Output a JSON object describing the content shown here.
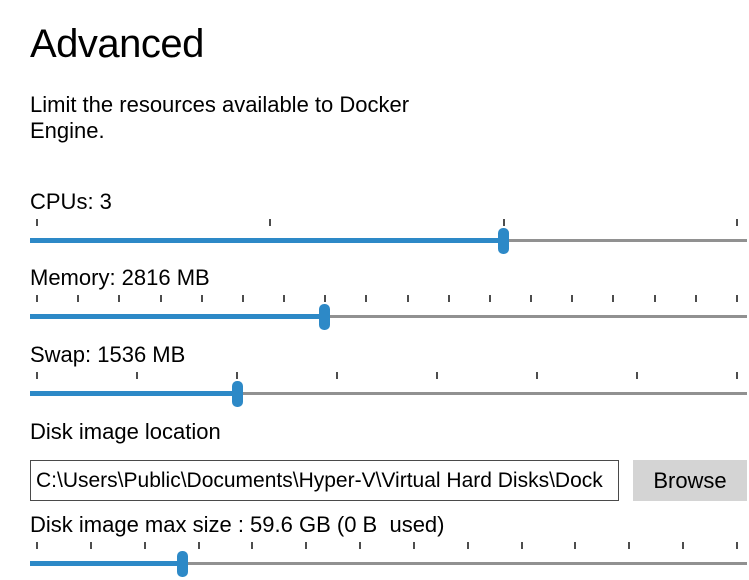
{
  "page": {
    "title": "Advanced",
    "subtitle_line1": "Limit the resources available to Docker",
    "subtitle_line2": "Engine."
  },
  "sliders": [
    {
      "id": "cpus",
      "label": "CPUs: 3",
      "tick_count": 4,
      "value_pct": 66.0
    },
    {
      "id": "memory",
      "label": "Memory: 2816 MB",
      "tick_count": 18,
      "value_pct": 41.1
    },
    {
      "id": "swap",
      "label": "Swap: 1536 MB",
      "tick_count": 8,
      "value_pct": 28.9
    },
    {
      "id": "disk-max-size",
      "label": "Disk image max size : 59.6 GB (0 B  used)",
      "tick_count": 14,
      "value_pct": 21.3
    }
  ],
  "disk_location": {
    "label": "Disk image location",
    "path": "C:\\Users\\Public\\Documents\\Hyper-V\\Virtual Hard Disks\\Dock",
    "browse_label": "Browse"
  },
  "colors": {
    "accent_blue": "#2d89c7",
    "track_gray": "#919191",
    "tick_gray": "#4d4d4d",
    "button_gray": "#d4d4d4"
  }
}
